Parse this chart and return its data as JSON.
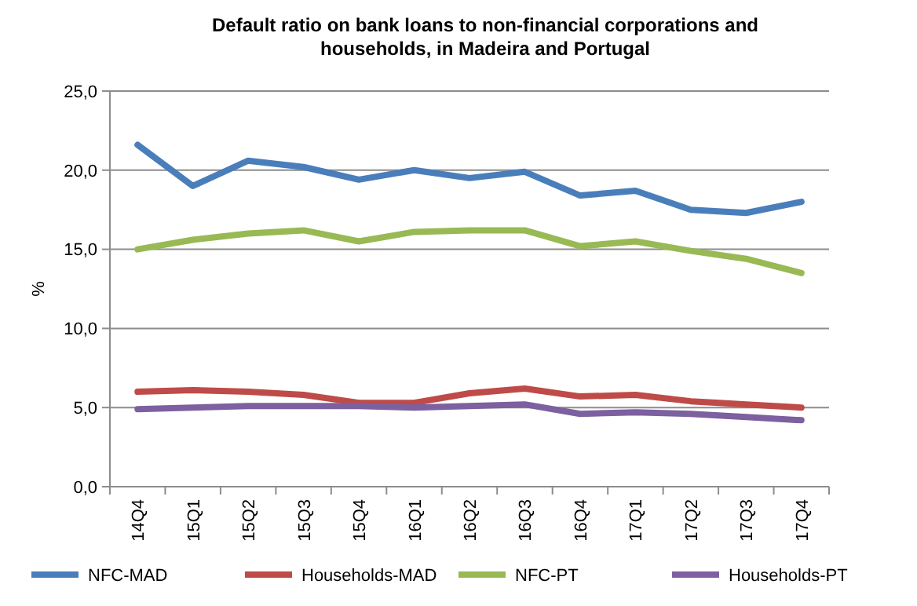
{
  "chart_data": {
    "type": "line",
    "title": "Default ratio on bank loans to non-financial corporations and households, in Madeira and Portugal",
    "ylabel": "%",
    "categories": [
      "14Q4",
      "15Q1",
      "15Q2",
      "15Q3",
      "15Q4",
      "16Q1",
      "16Q2",
      "16Q3",
      "16Q4",
      "17Q1",
      "17Q2",
      "17Q3",
      "17Q4"
    ],
    "series": [
      {
        "name": "NFC-MAD",
        "color": "#4a7ebb",
        "values": [
          21.6,
          19.0,
          20.6,
          20.2,
          19.4,
          20.0,
          19.5,
          19.9,
          18.4,
          18.7,
          17.5,
          17.3,
          18.0
        ]
      },
      {
        "name": "Households-MAD",
        "color": "#be4b48",
        "values": [
          6.0,
          6.1,
          6.0,
          5.8,
          5.3,
          5.3,
          5.9,
          6.2,
          5.7,
          5.8,
          5.4,
          5.2,
          5.0
        ]
      },
      {
        "name": "NFC-PT",
        "color": "#98b954",
        "values": [
          15.0,
          15.6,
          16.0,
          16.2,
          15.5,
          16.1,
          16.2,
          16.2,
          15.2,
          15.5,
          14.9,
          14.4,
          13.5
        ]
      },
      {
        "name": "Households-PT",
        "color": "#7d60a0",
        "values": [
          4.9,
          5.0,
          5.1,
          5.1,
          5.1,
          5.0,
          5.1,
          5.2,
          4.6,
          4.7,
          4.6,
          4.4,
          4.2
        ]
      }
    ],
    "ylim": [
      0,
      25
    ],
    "yticks": [
      {
        "value": 0,
        "label": "0,0"
      },
      {
        "value": 5,
        "label": "5,0"
      },
      {
        "value": 10,
        "label": "10,0"
      },
      {
        "value": 15,
        "label": "15,0"
      },
      {
        "value": 20,
        "label": "20,0"
      },
      {
        "value": 25,
        "label": "25,0"
      }
    ],
    "grid": "y",
    "legend": "bottom",
    "marker": "none",
    "line_style": "solid"
  }
}
